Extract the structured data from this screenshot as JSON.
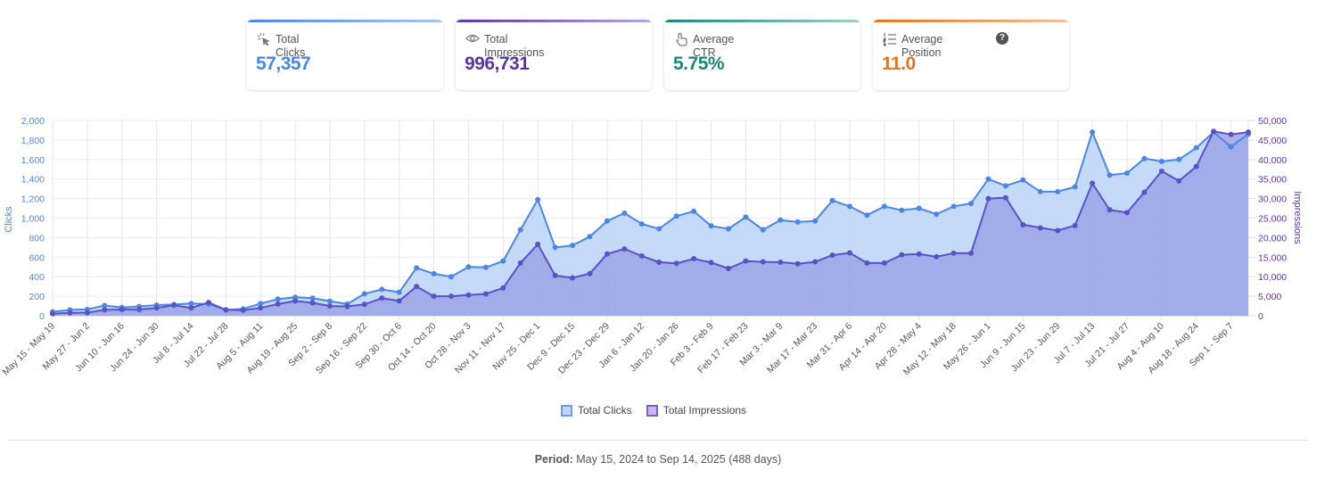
{
  "cards": [
    {
      "label": "Total Clicks",
      "value": "57,357",
      "icon": "cursor-click-icon",
      "color": "#4a86e8",
      "bar": [
        "#4a86e8",
        "#a9c6f3"
      ]
    },
    {
      "label": "Total Impressions",
      "value": "996,731",
      "icon": "eye-icon",
      "color": "#5b35a8",
      "bar": [
        "#5b35a8",
        "#b9a6d9"
      ]
    },
    {
      "label": "Average CTR",
      "value": "5.75%",
      "icon": "touch-icon",
      "color": "#17887a",
      "bar": [
        "#17887a",
        "#9fd2c9"
      ]
    },
    {
      "label": "Average Position",
      "value": "11.0",
      "icon": "numbered-list-icon",
      "color": "#e3761f",
      "bar": [
        "#e3761f",
        "#f0c39c"
      ],
      "help": "?"
    }
  ],
  "legend": {
    "clicks": "Total Clicks",
    "impressions": "Total Impressions"
  },
  "period": {
    "label": "Period:",
    "text": "May 15, 2024 to Sep 14, 2025 (488 days)"
  },
  "chart_data": {
    "type": "area",
    "title": "",
    "ylabel": "Clicks",
    "y2label": "Impressions",
    "ylim": [
      0,
      2000
    ],
    "y2lim": [
      0,
      50000
    ],
    "yticks": [
      "2,000",
      "1,800",
      "1,600",
      "1,400",
      "1,200",
      "1,000",
      "800",
      "600",
      "400",
      "200",
      "0"
    ],
    "y2ticks": [
      "50,000",
      "45,000",
      "40,000",
      "35,000",
      "30,000",
      "25,000",
      "20,000",
      "15,000",
      "10,000",
      "5,000",
      "0"
    ],
    "grid": true,
    "legend_position": "bottom",
    "x_tick_labels": [
      "May 15 - May 19",
      "May 27 - Jun 2",
      "Jun 10 - Jun 16",
      "Jun 24 - Jun 30",
      "Jul 8 - Jul 14",
      "Jul 22 - Jul 28",
      "Aug 5 - Aug 11",
      "Aug 19 - Aug 25",
      "Sep 2 - Sep 8",
      "Sep 16 - Sep 22",
      "Sep 30 - Oct 6",
      "Oct 14 - Oct 20",
      "Oct 28 - Nov 3",
      "Nov 11 - Nov 17",
      "Nov 25 - Dec 1",
      "Dec 9 - Dec 15",
      "Dec 23 - Dec 29",
      "Jan 6 - Jan 12",
      "Jan 20 - Jan 26",
      "Feb 3 - Feb 9",
      "Feb 17 - Feb 23",
      "Mar 3 - Mar 9",
      "Mar 17 - Mar 23",
      "Mar 31 - Apr 6",
      "Apr 14 - Apr 20",
      "Apr 28 - May 4",
      "May 12 - May 18",
      "May 26 - Jun 1",
      "Jun 9 - Jun 15",
      "Jun 23 - Jun 29",
      "Jul 7 - Jul 13",
      "Jul 21 - Jul 27",
      "Aug 4 - Aug 10",
      "Aug 18 - Aug 24",
      "Sep 1 - Sep 7"
    ],
    "series": [
      {
        "name": "Total Clicks",
        "axis": "left",
        "color": "#4a86e8",
        "fill": "#c2d7f8",
        "values": [
          40,
          60,
          65,
          105,
          85,
          95,
          110,
          115,
          125,
          120,
          60,
          70,
          125,
          170,
          190,
          180,
          150,
          120,
          225,
          270,
          240,
          490,
          430,
          400,
          500,
          495,
          560,
          880,
          1190,
          700,
          720,
          810,
          970,
          1050,
          940,
          890,
          1020,
          1070,
          920,
          890,
          1010,
          880,
          980,
          960,
          970,
          1180,
          1120,
          1030,
          1120,
          1080,
          1100,
          1040,
          1120,
          1150,
          1400,
          1330,
          1390,
          1270,
          1270,
          1320,
          1880,
          1440,
          1460,
          1610,
          1580,
          1600,
          1720,
          1880,
          1730,
          1860
        ]
      },
      {
        "name": "Total Impressions",
        "axis": "right",
        "color": "#5b51c7",
        "fill": "#9aa5e6",
        "values": [
          500,
          750,
          800,
          1500,
          1600,
          1600,
          2000,
          2700,
          2000,
          3400,
          1500,
          1400,
          2000,
          3000,
          3800,
          3300,
          2500,
          2400,
          2900,
          4500,
          3800,
          7500,
          5000,
          5000,
          5300,
          5600,
          7100,
          13500,
          18300,
          10300,
          9700,
          10800,
          15800,
          17100,
          15300,
          13700,
          13400,
          14600,
          13600,
          12100,
          14000,
          13800,
          13700,
          13300,
          13800,
          15500,
          16100,
          13500,
          13500,
          15600,
          15800,
          15100,
          16000,
          16000,
          30000,
          30200,
          23300,
          22500,
          21800,
          23100,
          33900,
          27100,
          26400,
          31600,
          37000,
          34500,
          38200,
          47200,
          46400,
          47000
        ]
      }
    ]
  }
}
